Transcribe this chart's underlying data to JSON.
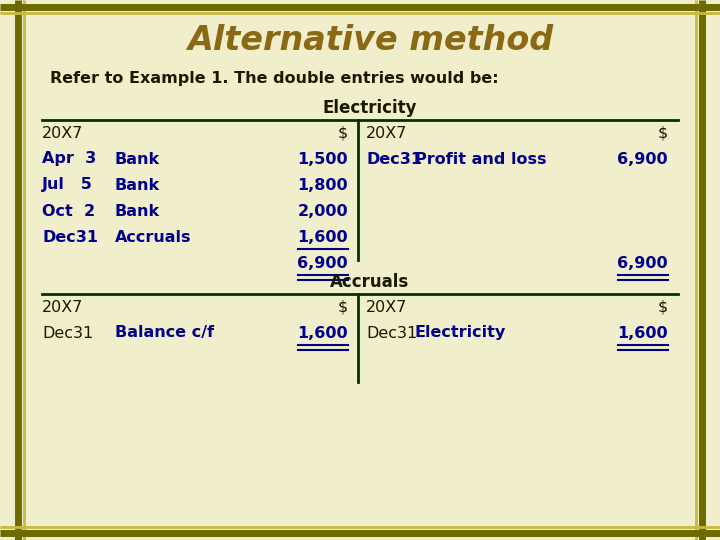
{
  "title": "Alternative method",
  "subtitle": "Refer to Example 1. The double entries would be:",
  "bg_color": "#f0eecb",
  "border_dark": "#6b6b00",
  "border_light": "#c8c050",
  "title_color": "#8B6914",
  "subtitle_color": "#1a1a00",
  "table_text_color": "#00008B",
  "header_color": "#1a1a00",
  "line_color": "#003300",
  "elec_line_color": "#00008B",
  "electricity_header": "Electricity",
  "accruals_header": "Accruals",
  "elec_left": [
    [
      "20X7",
      "",
      "$"
    ],
    [
      "Apr  3",
      "Bank",
      "1,500"
    ],
    [
      "Jul   5",
      "Bank",
      "1,800"
    ],
    [
      "Oct  2",
      "Bank",
      "2,000"
    ],
    [
      "Dec31",
      "Accruals",
      "1,600"
    ],
    [
      "",
      "",
      "6,900"
    ]
  ],
  "elec_right": [
    [
      "20X7",
      "",
      "$"
    ],
    [
      "Dec31",
      "Profit and loss",
      "6,900"
    ],
    [
      "",
      "",
      ""
    ],
    [
      "",
      "",
      ""
    ],
    [
      "",
      "",
      ""
    ],
    [
      "",
      "",
      "6,900"
    ]
  ],
  "acc_left": [
    [
      "20X7",
      "",
      "$"
    ],
    [
      "Dec31",
      "Balance c/f",
      "1,600"
    ]
  ],
  "acc_right": [
    [
      "20X7",
      "",
      "$"
    ],
    [
      "Dec31",
      "Electricity",
      "1,600"
    ]
  ]
}
